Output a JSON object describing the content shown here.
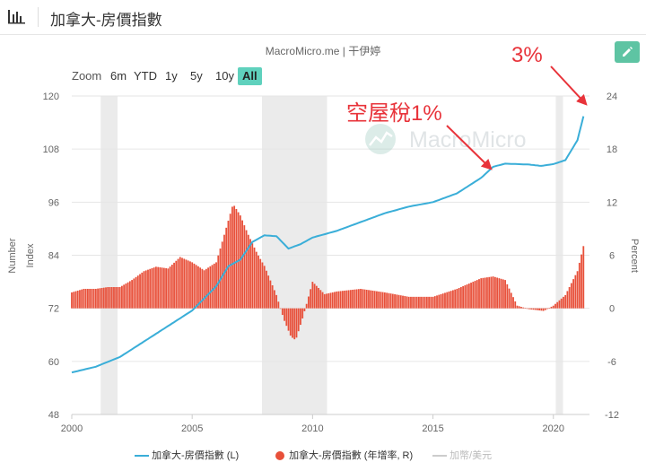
{
  "header": {
    "title": "加拿大-房價指數",
    "icon": "bar-chart-icon"
  },
  "source": "MacroMicro.me | 干伊婷",
  "watermark": "MacroMicro",
  "zoom": {
    "label": "Zoom",
    "buttons": [
      "6m",
      "YTD",
      "1y",
      "5y",
      "10y",
      "All"
    ],
    "active": "All"
  },
  "annotations": {
    "tax": "空屋稅1%",
    "three": "3%"
  },
  "colors": {
    "line": "#3aaed8",
    "bars": "#e8503a",
    "annot": "#e8333a",
    "accent": "#5ec4a3",
    "recession": "#ebebeb"
  },
  "chart_data": {
    "type": "line+bar",
    "left_axis": {
      "label": "Number Index",
      "min": 48,
      "max": 120,
      "ticks": [
        48,
        60,
        72,
        84,
        96,
        108,
        120
      ]
    },
    "right_axis": {
      "label": "Percent",
      "min": -12,
      "max": 24,
      "ticks": [
        -12,
        -6,
        0,
        6,
        12,
        18,
        24
      ]
    },
    "x_axis": {
      "min": 2000,
      "max": 2021.5,
      "ticks": [
        2000,
        2005,
        2010,
        2015,
        2020
      ]
    },
    "recession_bands": [
      [
        2001.2,
        2001.9
      ],
      [
        2007.9,
        2010.6
      ],
      [
        2020.1,
        2020.4
      ]
    ],
    "series": [
      {
        "name": "加拿大-房價指數 (L)",
        "type": "line",
        "points": [
          [
            2000,
            57.5
          ],
          [
            2001,
            58.8
          ],
          [
            2002,
            61
          ],
          [
            2003,
            64.5
          ],
          [
            2004,
            68
          ],
          [
            2005,
            71.5
          ],
          [
            2006,
            77
          ],
          [
            2006.5,
            81.5
          ],
          [
            2007,
            83
          ],
          [
            2007.5,
            87
          ],
          [
            2008,
            88.5
          ],
          [
            2008.5,
            88.3
          ],
          [
            2009,
            85.5
          ],
          [
            2009.5,
            86.5
          ],
          [
            2010,
            88
          ],
          [
            2011,
            89.5
          ],
          [
            2012,
            91.5
          ],
          [
            2013,
            93.5
          ],
          [
            2014,
            95
          ],
          [
            2015,
            96
          ],
          [
            2016,
            98
          ],
          [
            2017,
            101.5
          ],
          [
            2017.5,
            104
          ],
          [
            2018,
            104.7
          ],
          [
            2019,
            104.5
          ],
          [
            2019.5,
            104.2
          ],
          [
            2020,
            104.6
          ],
          [
            2020.5,
            105.5
          ],
          [
            2021,
            110
          ],
          [
            2021.3,
            116.5
          ]
        ]
      },
      {
        "name": "加拿大-房價指數 (年增率, R)",
        "type": "bar",
        "points": [
          [
            2000,
            1.8
          ],
          [
            2000.5,
            2.2
          ],
          [
            2001,
            2.2
          ],
          [
            2001.5,
            2.4
          ],
          [
            2002,
            2.4
          ],
          [
            2002.5,
            3.2
          ],
          [
            2003,
            4.2
          ],
          [
            2003.5,
            4.7
          ],
          [
            2004,
            4.5
          ],
          [
            2004.5,
            5.8
          ],
          [
            2005,
            5.2
          ],
          [
            2005.5,
            4.3
          ],
          [
            2006,
            5.2
          ],
          [
            2006.3,
            8
          ],
          [
            2006.7,
            11.8
          ],
          [
            2007,
            10.5
          ],
          [
            2007.3,
            8.5
          ],
          [
            2007.7,
            6.2
          ],
          [
            2008,
            4.8
          ],
          [
            2008.5,
            1.5
          ],
          [
            2008.8,
            -1.2
          ],
          [
            2009.1,
            -3.2
          ],
          [
            2009.3,
            -3.6
          ],
          [
            2009.6,
            -1
          ],
          [
            2010,
            3
          ],
          [
            2010.5,
            1.6
          ],
          [
            2011,
            1.9
          ],
          [
            2012,
            2.2
          ],
          [
            2013,
            1.8
          ],
          [
            2014,
            1.3
          ],
          [
            2015,
            1.3
          ],
          [
            2016,
            2.2
          ],
          [
            2016.5,
            2.8
          ],
          [
            2017,
            3.4
          ],
          [
            2017.5,
            3.6
          ],
          [
            2018,
            3.2
          ],
          [
            2018.5,
            0.3
          ],
          [
            2019,
            -0.1
          ],
          [
            2019.6,
            -0.3
          ],
          [
            2020,
            0.3
          ],
          [
            2020.5,
            1.5
          ],
          [
            2021,
            4.2
          ],
          [
            2021.3,
            7.6
          ]
        ]
      }
    ],
    "legend": [
      "加拿大-房價指數 (L)",
      "加拿大-房價指數 (年增率, R)",
      "加幣/美元"
    ]
  }
}
